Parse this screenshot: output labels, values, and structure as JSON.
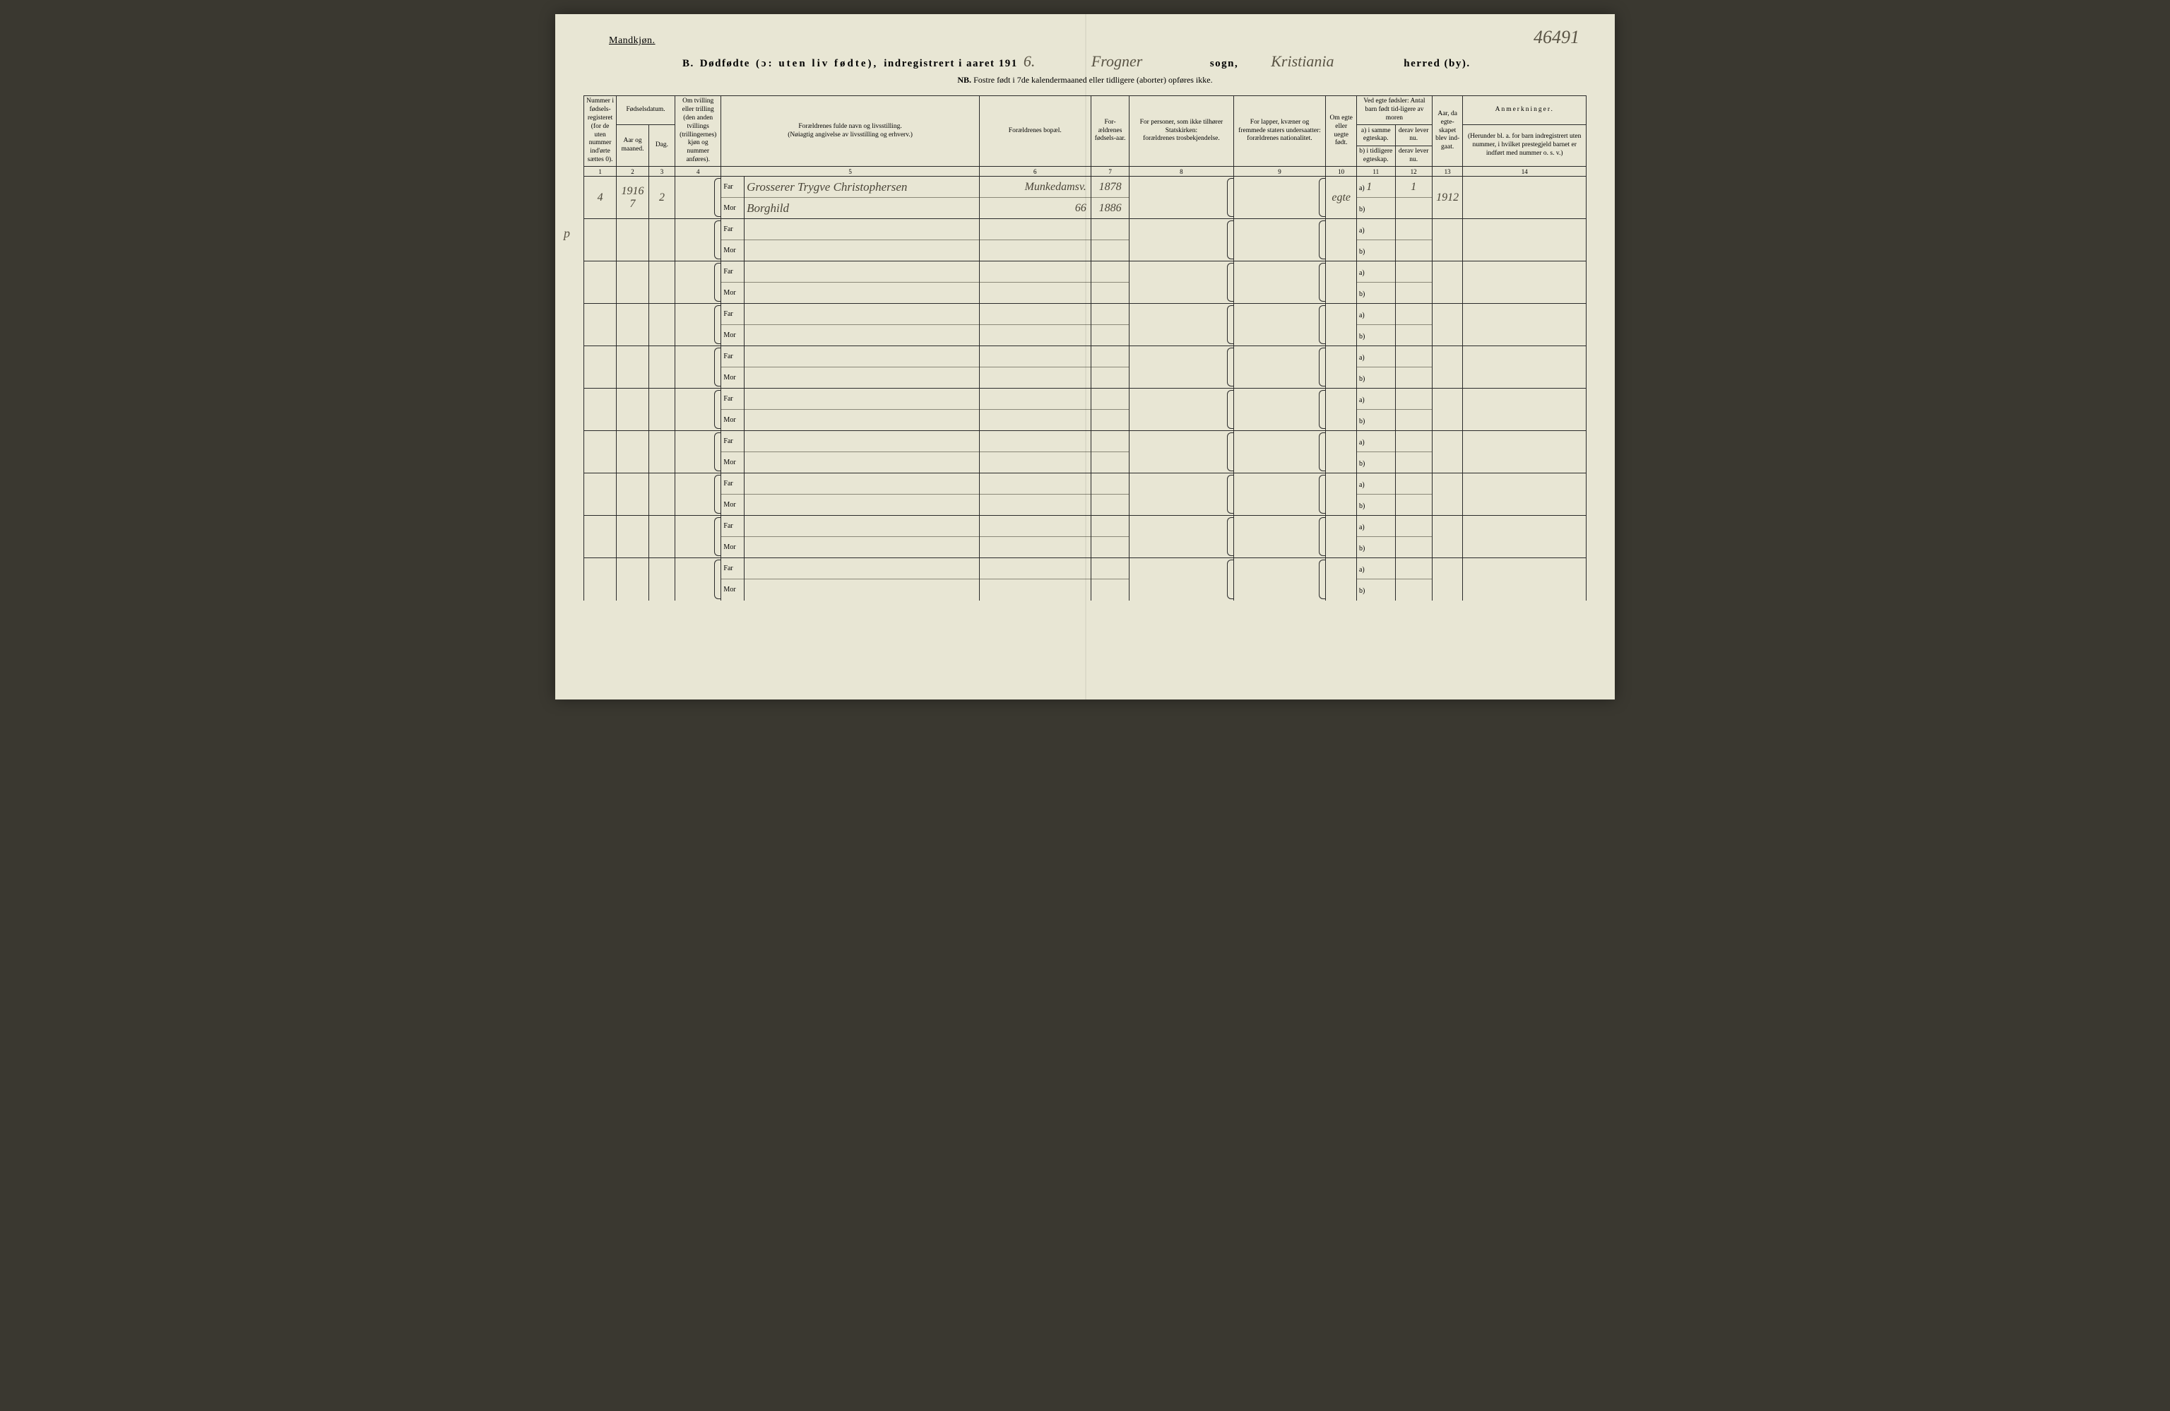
{
  "corner_number": "46491",
  "gender_label": "Mandkjøn.",
  "margin_mark": "p",
  "title": {
    "prefix": "B.",
    "main": "Dødfødte",
    "paren": "(ɔ: uten liv fødte),",
    "indreg": "indregistrert i aaret 191",
    "year_suffix": "6.",
    "parish_hw": "Frogner",
    "parish_label": "sogn,",
    "district_hw": "Kristiania",
    "district_label": "herred (by)."
  },
  "nb": {
    "label": "NB.",
    "text": "Fostre født i 7de kalendermaaned eller tidligere (aborter) opføres ikke."
  },
  "headers": {
    "c1": "Nummer i fødsels-registeret (for de uten nummer ind'ørte sættes 0).",
    "c2_top": "Fødselsdatum.",
    "c2a": "Aar og maaned.",
    "c2b": "Dag.",
    "c4": "Om tvilling eller trilling (den anden tvillings (trillingernes) kjøn og nummer anføres).",
    "c5": "Forældrenes fulde navn og livsstilling.\n(Nøiagtig angivelse av livsstilling og erhverv.)",
    "c6": "Forældrenes bopæl.",
    "c7": "For-ældrenes fødsels-aar.",
    "c8": "For personer, som ikke tilhører Statskirken:\nforældrenes trosbekjendelse.",
    "c9": "For lapper, kvæner og fremmede staters undersaatter:\nforældrenes nationalitet.",
    "c10": "Om egte eller uegte født.",
    "c11_top": "Ved egte fødsler:\nAntal barn født tid-ligere av moren",
    "c11a": "a) i samme egteskap.",
    "c11b": "b) i tidligere egteskap.",
    "c12a": "derav lever nu.",
    "c12b": "derav lever nu.",
    "c13": "Aar, da egte-skapet blev ind-gaat.",
    "c14_top": "Anmerkninger.",
    "c14_sub": "(Herunder bl. a. for barn indregistrert uten nummer, i hvilket prestegjeld barnet er indført med nummer o. s. v.)"
  },
  "colnums": [
    "1",
    "2",
    "3",
    "4",
    "5",
    "6",
    "7",
    "8",
    "9",
    "10",
    "11",
    "12",
    "13",
    "14"
  ],
  "far_label": "Far",
  "mor_label": "Mor",
  "a_label": "a)",
  "b_label": "b)",
  "rows": [
    {
      "num": "4",
      "year_month": "1916\n7",
      "day": "2",
      "twin": "",
      "far_name": "Grosserer Trygve Christophersen",
      "mor_name": "Borghild",
      "far_addr": "Munkedamsv.",
      "mor_addr": "66",
      "far_year": "1878",
      "mor_year": "1886",
      "col8": "",
      "col9": "",
      "egte": "egte",
      "a_val": "1",
      "a_lever": "1",
      "b_val": "",
      "b_lever": "",
      "year_married": "1912",
      "remarks": ""
    },
    {
      "num": "",
      "year_month": "",
      "day": "",
      "twin": "",
      "far_name": "",
      "mor_name": "",
      "far_addr": "",
      "mor_addr": "",
      "far_year": "",
      "mor_year": "",
      "col8": "",
      "col9": "",
      "egte": "",
      "a_val": "",
      "a_lever": "",
      "b_val": "",
      "b_lever": "",
      "year_married": "",
      "remarks": ""
    },
    {
      "num": "",
      "year_month": "",
      "day": "",
      "twin": "",
      "far_name": "",
      "mor_name": "",
      "far_addr": "",
      "mor_addr": "",
      "far_year": "",
      "mor_year": "",
      "col8": "",
      "col9": "",
      "egte": "",
      "a_val": "",
      "a_lever": "",
      "b_val": "",
      "b_lever": "",
      "year_married": "",
      "remarks": ""
    },
    {
      "num": "",
      "year_month": "",
      "day": "",
      "twin": "",
      "far_name": "",
      "mor_name": "",
      "far_addr": "",
      "mor_addr": "",
      "far_year": "",
      "mor_year": "",
      "col8": "",
      "col9": "",
      "egte": "",
      "a_val": "",
      "a_lever": "",
      "b_val": "",
      "b_lever": "",
      "year_married": "",
      "remarks": ""
    },
    {
      "num": "",
      "year_month": "",
      "day": "",
      "twin": "",
      "far_name": "",
      "mor_name": "",
      "far_addr": "",
      "mor_addr": "",
      "far_year": "",
      "mor_year": "",
      "col8": "",
      "col9": "",
      "egte": "",
      "a_val": "",
      "a_lever": "",
      "b_val": "",
      "b_lever": "",
      "year_married": "",
      "remarks": ""
    },
    {
      "num": "",
      "year_month": "",
      "day": "",
      "twin": "",
      "far_name": "",
      "mor_name": "",
      "far_addr": "",
      "mor_addr": "",
      "far_year": "",
      "mor_year": "",
      "col8": "",
      "col9": "",
      "egte": "",
      "a_val": "",
      "a_lever": "",
      "b_val": "",
      "b_lever": "",
      "year_married": "",
      "remarks": ""
    },
    {
      "num": "",
      "year_month": "",
      "day": "",
      "twin": "",
      "far_name": "",
      "mor_name": "",
      "far_addr": "",
      "mor_addr": "",
      "far_year": "",
      "mor_year": "",
      "col8": "",
      "col9": "",
      "egte": "",
      "a_val": "",
      "a_lever": "",
      "b_val": "",
      "b_lever": "",
      "year_married": "",
      "remarks": ""
    },
    {
      "num": "",
      "year_month": "",
      "day": "",
      "twin": "",
      "far_name": "",
      "mor_name": "",
      "far_addr": "",
      "mor_addr": "",
      "far_year": "",
      "mor_year": "",
      "col8": "",
      "col9": "",
      "egte": "",
      "a_val": "",
      "a_lever": "",
      "b_val": "",
      "b_lever": "",
      "year_married": "",
      "remarks": ""
    },
    {
      "num": "",
      "year_month": "",
      "day": "",
      "twin": "",
      "far_name": "",
      "mor_name": "",
      "far_addr": "",
      "mor_addr": "",
      "far_year": "",
      "mor_year": "",
      "col8": "",
      "col9": "",
      "egte": "",
      "a_val": "",
      "a_lever": "",
      "b_val": "",
      "b_lever": "",
      "year_married": "",
      "remarks": ""
    },
    {
      "num": "",
      "year_month": "",
      "day": "",
      "twin": "",
      "far_name": "",
      "mor_name": "",
      "far_addr": "",
      "mor_addr": "",
      "far_year": "",
      "mor_year": "",
      "col8": "",
      "col9": "",
      "egte": "",
      "a_val": "",
      "a_lever": "",
      "b_val": "",
      "b_lever": "",
      "year_married": "",
      "remarks": ""
    }
  ]
}
